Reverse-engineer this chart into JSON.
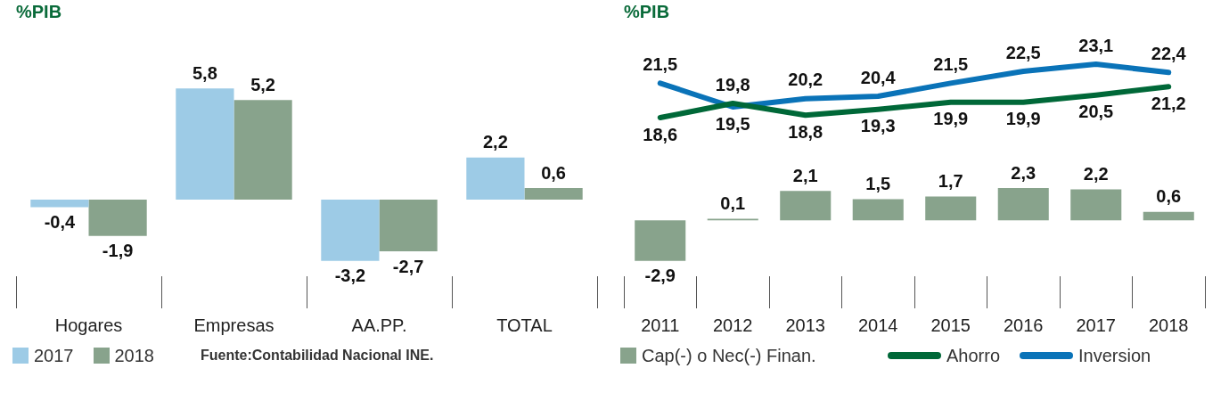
{
  "chart_data": [
    {
      "type": "bar",
      "title": "%PIB",
      "categories": [
        "Hogares",
        "Empresas",
        "AA.PP.",
        "TOTAL"
      ],
      "series": [
        {
          "name": "2017",
          "color": "#9dcbe6",
          "values": [
            -0.4,
            5.8,
            -3.2,
            2.2
          ],
          "value_labels": [
            "-0,4",
            "5,8",
            "-3,2",
            "2,2"
          ]
        },
        {
          "name": "2018",
          "color": "#88a38c",
          "values": [
            -1.9,
            5.2,
            -2.7,
            0.6
          ],
          "value_labels": [
            "-1,9",
            "5,2",
            "-2,7",
            "0,6"
          ]
        }
      ],
      "legend": "bottom",
      "annotations": [
        "Fuente:Contabilidad Nacional INE."
      ]
    },
    {
      "type": "line",
      "title": "%PIB",
      "categories": [
        "2011",
        "2012",
        "2013",
        "2014",
        "2015",
        "2016",
        "2017",
        "2018"
      ],
      "series": [
        {
          "name": "Ahorro",
          "color": "#006838",
          "values": [
            18.6,
            19.8,
            18.8,
            19.3,
            19.9,
            19.9,
            20.5,
            21.2
          ],
          "value_labels": [
            "18,6",
            "19,8",
            "18,8",
            "19,3",
            "19,9",
            "19,9",
            "20,5",
            "21,2"
          ]
        },
        {
          "name": "Inversion",
          "color": "#0a73b8",
          "values": [
            21.5,
            19.5,
            20.2,
            20.4,
            21.5,
            22.5,
            23.1,
            22.4
          ],
          "value_labels": [
            "21,5",
            "19,5",
            "20,2",
            "20,4",
            "21,5",
            "22,5",
            "23,1",
            "22,4"
          ]
        }
      ],
      "tick_labels": false,
      "legend": "bottom",
      "marker": "none"
    },
    {
      "type": "bar",
      "categories": [
        "2011",
        "2012",
        "2013",
        "2014",
        "2015",
        "2016",
        "2017",
        "2018"
      ],
      "series": [
        {
          "name": "Cap(-) o Nec(-) Finan.",
          "color": "#88a38c",
          "values": [
            -2.9,
            0.1,
            2.1,
            1.5,
            1.7,
            2.3,
            2.2,
            0.6
          ],
          "value_labels": [
            "-2,9",
            "0,1",
            "2,1",
            "1,5",
            "1,7",
            "2,3",
            "2,2",
            "0,6"
          ]
        }
      ],
      "legend": "bottom"
    }
  ]
}
